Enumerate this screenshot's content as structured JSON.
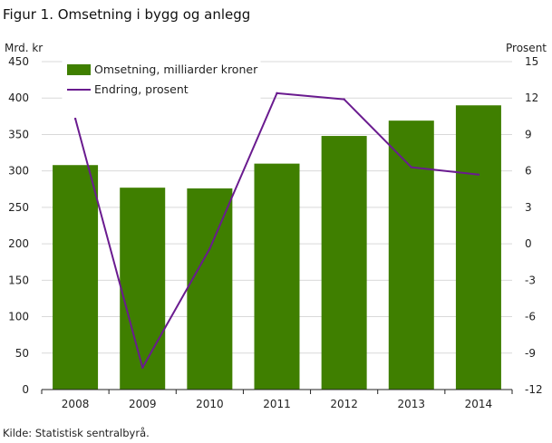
{
  "title": "Figur 1. Omsetning i bygg og anlegg",
  "source": "Kilde: Statistisk sentralbyrå.",
  "colors": {
    "bar": "#3f7f00",
    "line": "#6a1b8f",
    "grid": "#d9d9d9"
  },
  "chart_data": {
    "type": "bar",
    "title": "Figur 1. Omsetning i bygg og anlegg",
    "categories": [
      "2008",
      "2009",
      "2010",
      "2011",
      "2012",
      "2013",
      "2014"
    ],
    "y_left_label": "Mrd. kr",
    "y_right_label": "Prosent",
    "y_left_range": [
      0,
      450
    ],
    "y_left_ticks": [
      "0",
      "50",
      "100",
      "150",
      "200",
      "250",
      "300",
      "350",
      "400",
      "450"
    ],
    "y_right_range": [
      -12,
      15
    ],
    "y_right_ticks": [
      "-12",
      "-9",
      "-6",
      "-3",
      "0",
      "3",
      "6",
      "9",
      "12",
      "15"
    ],
    "grid": true,
    "legend_position": "top-left",
    "series": [
      {
        "name": "Omsetning, milliarder kroner",
        "type": "bar",
        "axis": "left",
        "values": [
          308,
          277,
          276,
          310,
          348,
          369,
          390
        ]
      },
      {
        "name": "Endring, prosent",
        "type": "line",
        "axis": "right",
        "values": [
          10.3,
          -10.2,
          -0.4,
          12.4,
          11.9,
          6.3,
          5.7
        ]
      }
    ]
  }
}
